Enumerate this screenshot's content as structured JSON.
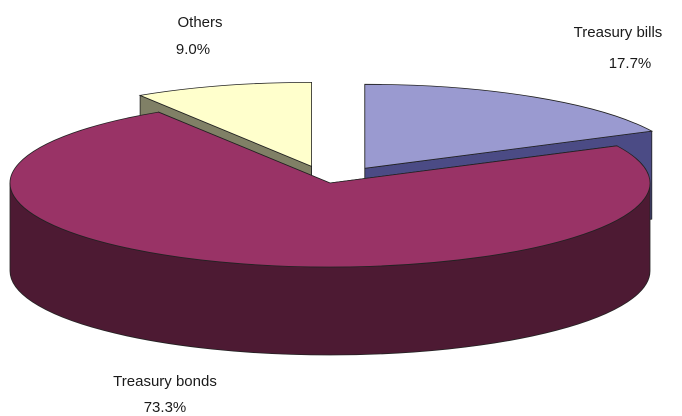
{
  "chart_data": {
    "type": "pie",
    "style": "3d-exploded",
    "title": "",
    "slices": [
      {
        "name": "Treasury bills",
        "value": 17.7,
        "value_label": "17.7%",
        "exploded": true,
        "colors": {
          "top": "#9a9ad0",
          "side": "#4b4b85"
        }
      },
      {
        "name": "Treasury bonds",
        "value": 73.3,
        "value_label": "73.3%",
        "exploded": false,
        "colors": {
          "top": "#993366",
          "side": "#4d1a33"
        }
      },
      {
        "name": "Others",
        "value": 9.0,
        "value_label": "9.0%",
        "exploded": true,
        "colors": {
          "top": "#ffffcc",
          "side": "#808066"
        }
      }
    ],
    "legend": "none"
  }
}
